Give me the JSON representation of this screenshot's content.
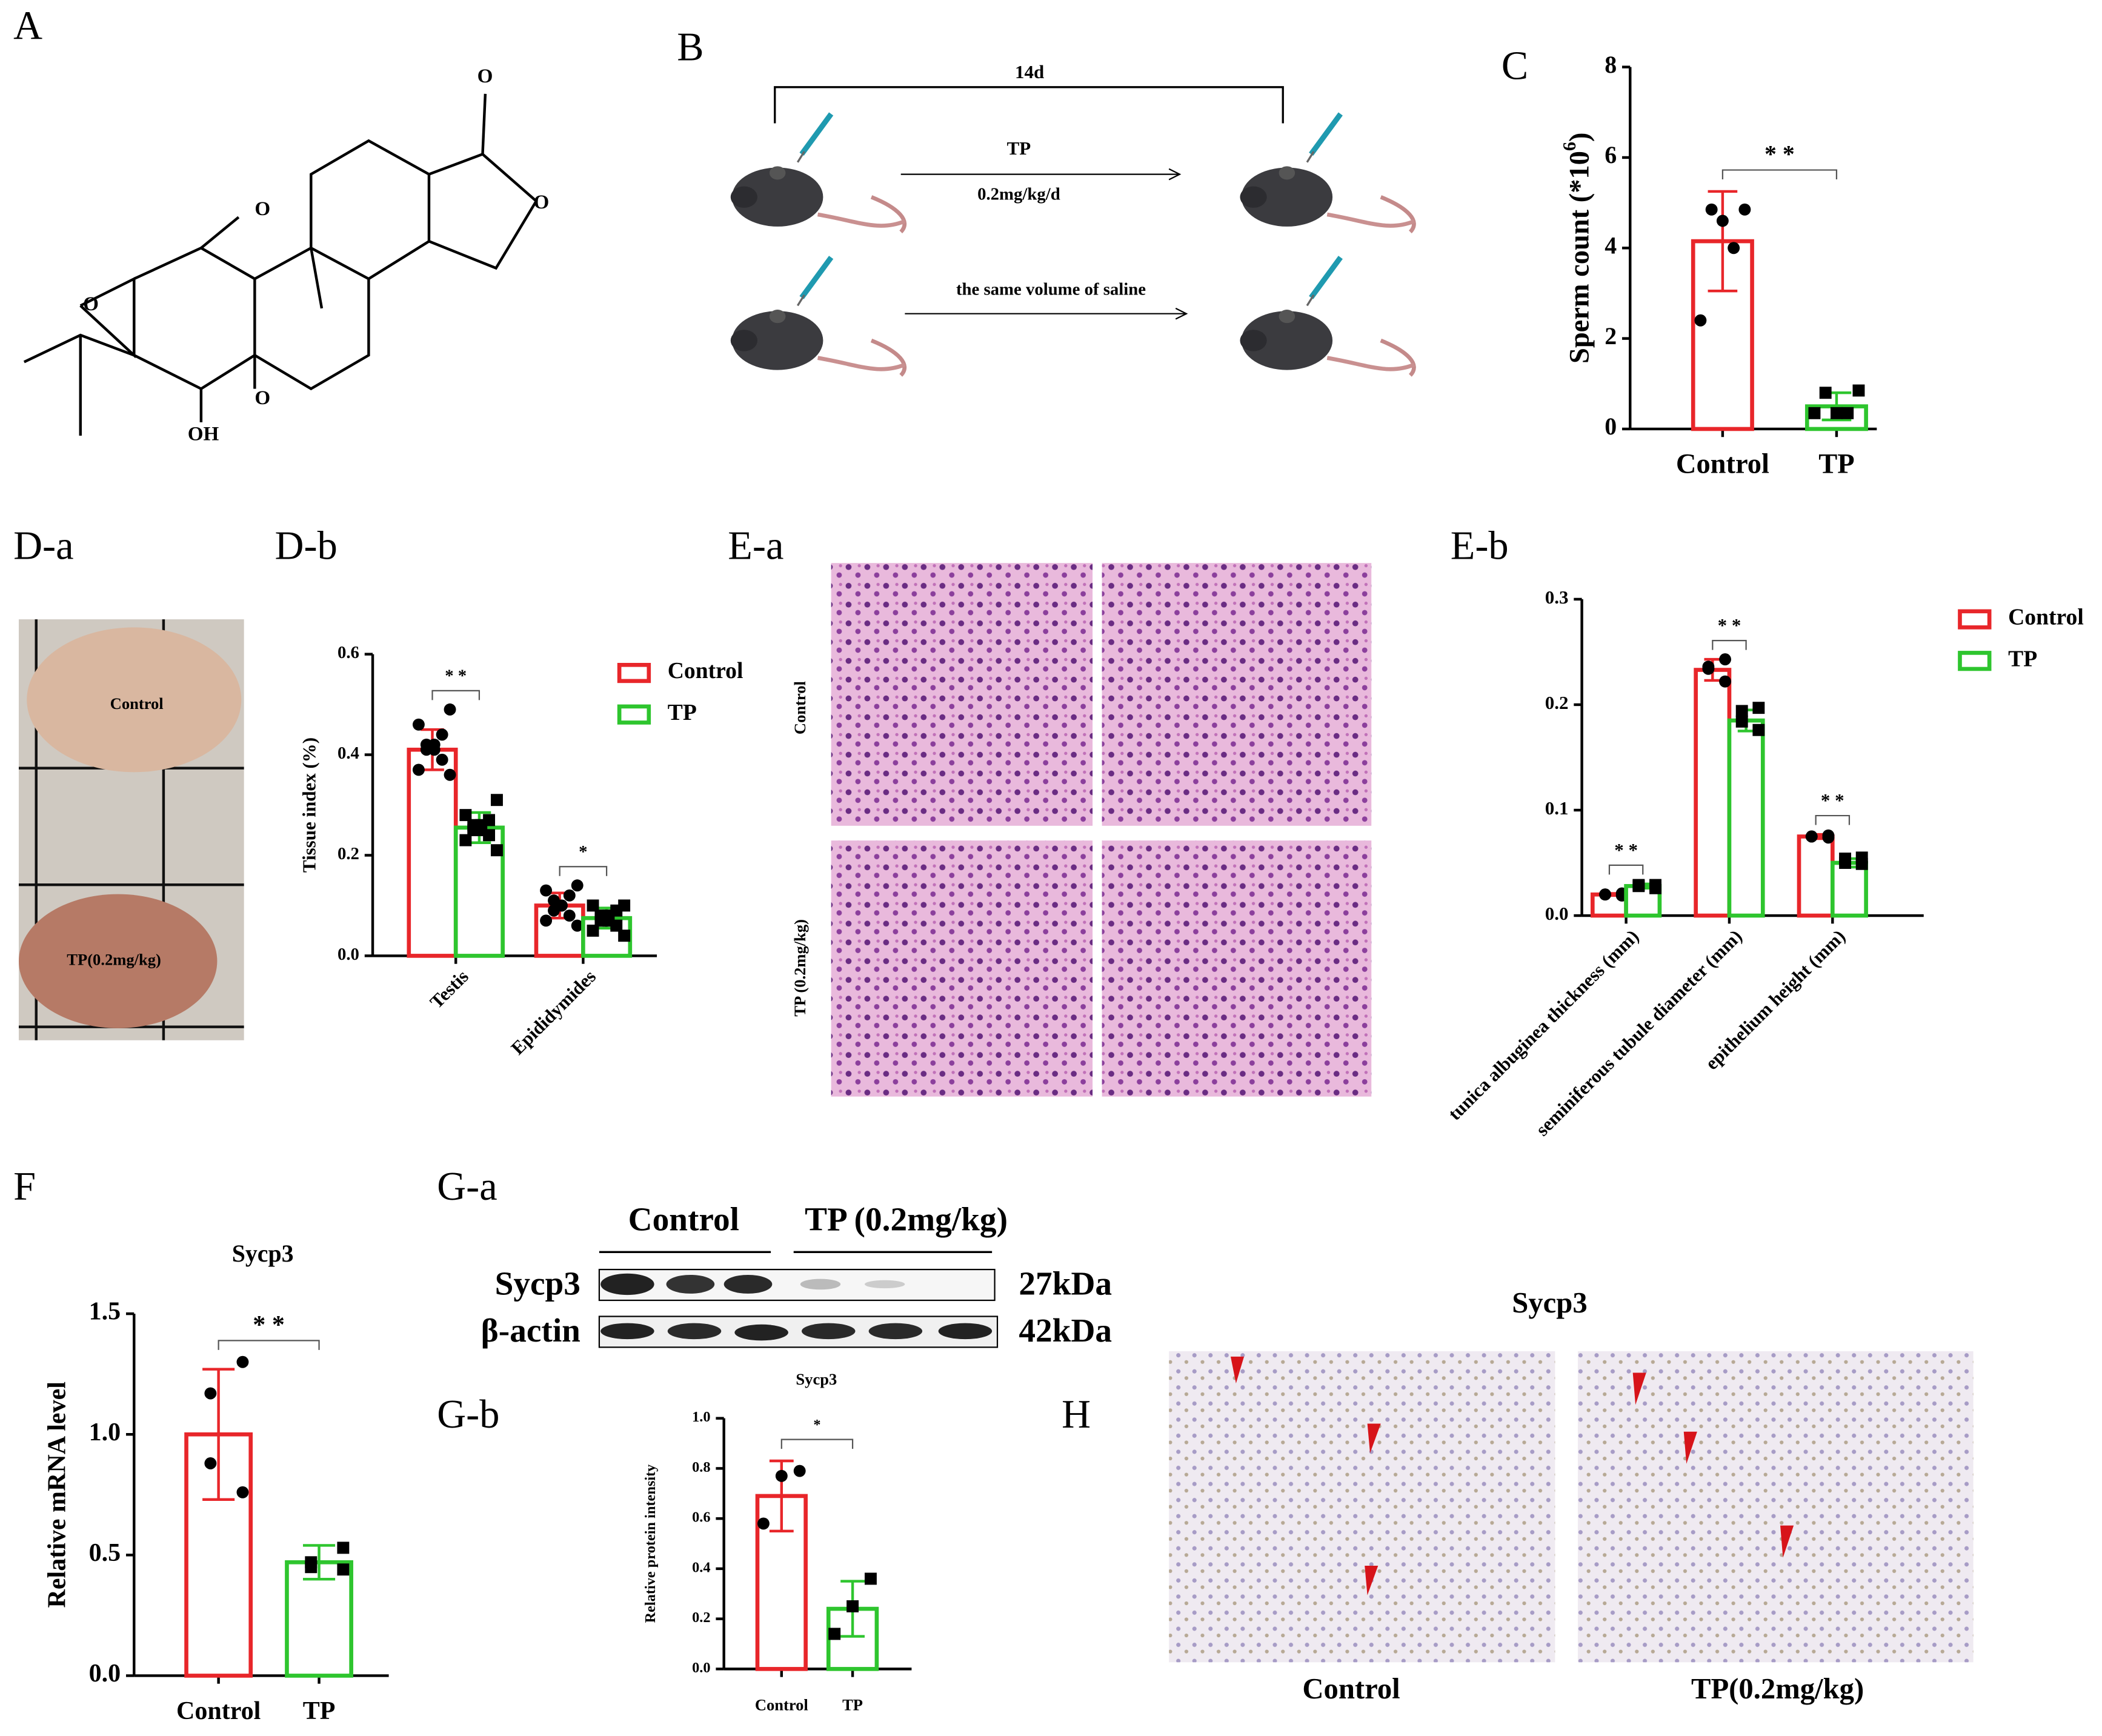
{
  "panel_labels": [
    "A",
    "B",
    "C",
    "D-a",
    "D-b",
    "E-a",
    "E-b",
    "F",
    "G-a",
    "G-b",
    "H"
  ],
  "structure": {
    "atoms": [
      "O",
      "O",
      "O",
      "O",
      "OH"
    ]
  },
  "scheme": {
    "duration": "14d",
    "drug": "TP",
    "dose": "0.2mg/kg/d",
    "vehicle": "the same volume of saline"
  },
  "photo": {
    "control": "Control",
    "tp": "TP(0.2mg/kg)"
  },
  "histology": {
    "control": "Control",
    "tp": "TP (0.2mg/kg)"
  },
  "blot": {
    "groups": [
      "Control",
      "TP (0.2mg/kg)"
    ],
    "proteins": [
      "Sycp3",
      "β-actin"
    ],
    "sizes": [
      "27kDa",
      "42kDa"
    ]
  },
  "ihc": {
    "title": "Sycp3",
    "captions": [
      "Control",
      "TP(0.2mg/kg)"
    ]
  },
  "chart_data": [
    {
      "type": "bar",
      "ylabel": "Sperm count (*10",
      "ylabel_sup": "6",
      "ylabel_end": ")",
      "categories": [
        "Control",
        "TP"
      ],
      "values": [
        4.15,
        0.5
      ],
      "errors": [
        1.1,
        0.3
      ],
      "colors": [
        "#e8262a",
        "#2ec52e"
      ],
      "markers": [
        "circle",
        "square"
      ],
      "points": [
        [
          4.85,
          4.85,
          4.6,
          4.0,
          2.4
        ],
        [
          0.85,
          0.8,
          0.35,
          0.35,
          0.35
        ]
      ],
      "significance": "* *",
      "ylim": [
        0,
        8
      ],
      "yticks": [
        0,
        2,
        4,
        6,
        8
      ]
    },
    {
      "type": "grouped_bar",
      "ylabel": "Tissue index (%)",
      "categories": [
        "Testis",
        "Epididymides"
      ],
      "series": [
        {
          "name": "Control",
          "color": "#e8262a",
          "values": [
            0.41,
            0.1
          ],
          "errors": [
            0.04,
            0.025
          ],
          "points": [
            [
              0.49,
              0.46,
              0.44,
              0.42,
              0.42,
              0.41,
              0.41,
              0.39,
              0.37,
              0.36
            ],
            [
              0.14,
              0.13,
              0.12,
              0.11,
              0.1,
              0.1,
              0.09,
              0.08,
              0.07,
              0.06
            ]
          ]
        },
        {
          "name": "TP",
          "color": "#2ec52e",
          "values": [
            0.255,
            0.075
          ],
          "errors": [
            0.03,
            0.02
          ],
          "points": [
            [
              0.31,
              0.28,
              0.27,
              0.26,
              0.26,
              0.25,
              0.25,
              0.24,
              0.23,
              0.21
            ],
            [
              0.1,
              0.1,
              0.09,
              0.08,
              0.08,
              0.07,
              0.07,
              0.06,
              0.05,
              0.04
            ]
          ]
        }
      ],
      "markers": [
        "circle",
        "square"
      ],
      "significance": [
        "* *",
        "*"
      ],
      "ylim": [
        0,
        0.6
      ],
      "yticks": [
        {
          "value": 0,
          "label": "0.0"
        },
        0.2,
        0.4,
        0.6
      ]
    },
    {
      "type": "grouped_bar",
      "categories": [
        "tunica albuginea thickness (mm)",
        "seminiferous tubule diameter (mm)",
        "epithelium height (mm)"
      ],
      "series": [
        {
          "name": "Control",
          "color": "#e8262a",
          "values": [
            0.02,
            0.233,
            0.075
          ],
          "errors": [
            0.001,
            0.01,
            0.002
          ],
          "points": [
            [
              0.019,
              0.02,
              0.02,
              0.021
            ],
            [
              0.243,
              0.236,
              0.234,
              0.222
            ],
            [
              0.076,
              0.075,
              0.075,
              0.074
            ]
          ]
        },
        {
          "name": "TP",
          "color": "#2ec52e",
          "values": [
            0.028,
            0.185,
            0.05
          ],
          "errors": [
            0.002,
            0.01,
            0.004
          ],
          "points": [
            [
              0.026,
              0.028,
              0.029,
              0.029
            ],
            [
              0.197,
              0.194,
              0.184,
              0.176
            ],
            [
              0.055,
              0.054,
              0.05,
              0.049
            ]
          ]
        }
      ],
      "markers": [
        "circle",
        "square"
      ],
      "significance": [
        "* *",
        "* *",
        "* *"
      ],
      "ylim": [
        0,
        0.3
      ],
      "yticks": [
        {
          "value": 0,
          "label": "0.0"
        },
        0.1,
        0.2,
        0.3
      ]
    },
    {
      "type": "bar",
      "title": "Sycp3",
      "ylabel": "Relative mRNA level",
      "categories": [
        "Control",
        "TP"
      ],
      "values": [
        1.0,
        0.47
      ],
      "errors": [
        0.27,
        0.07
      ],
      "colors": [
        "#e8262a",
        "#2ec52e"
      ],
      "markers": [
        "circle",
        "square"
      ],
      "points": [
        [
          1.3,
          1.17,
          0.88,
          0.76
        ],
        [
          0.53,
          0.47,
          0.45,
          0.44
        ]
      ],
      "significance": "* *",
      "ylim": [
        0,
        1.5
      ],
      "yticks": [
        {
          "value": 0,
          "label": "0.0"
        },
        0.5,
        {
          "value": 1,
          "label": "1.0"
        },
        1.5
      ]
    },
    {
      "type": "bar",
      "title": "Sycp3",
      "ylabel": "Relative protein intensity",
      "categories": [
        "Control",
        "TP"
      ],
      "values": [
        0.69,
        0.24
      ],
      "errors": [
        0.14,
        0.11
      ],
      "colors": [
        "#e8262a",
        "#2ec52e"
      ],
      "markers": [
        "circle",
        "square"
      ],
      "points": [
        [
          0.79,
          0.77,
          0.58
        ],
        [
          0.36,
          0.25,
          0.14
        ]
      ],
      "significance": "*",
      "ylim": [
        0,
        1.0
      ],
      "yticks": [
        {
          "value": 0,
          "label": "0.0"
        },
        0.2,
        0.4,
        0.6,
        0.8,
        {
          "value": 1,
          "label": "1.0"
        }
      ]
    }
  ]
}
